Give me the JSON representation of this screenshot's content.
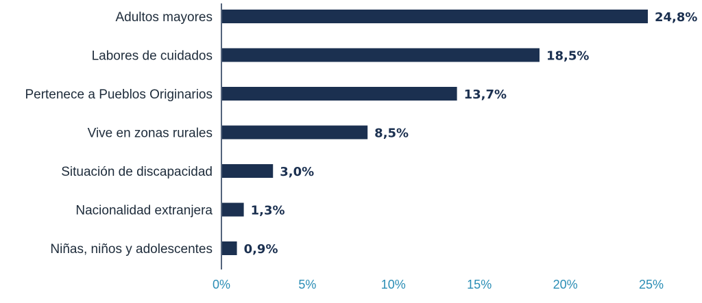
{
  "chart_data": {
    "type": "bar",
    "orientation": "horizontal",
    "categories": [
      "Adultos mayores",
      "Labores de cuidados",
      "Pertenece a Pueblos Originarios",
      "Vive en zonas rurales",
      "Situación de discapacidad",
      "Nacionalidad extranjera",
      "Niñas, niños y adolescentes"
    ],
    "values": [
      24.8,
      18.5,
      13.7,
      8.5,
      3.0,
      1.3,
      0.9
    ],
    "value_labels": [
      "24,8%",
      "18,5%",
      "13,7%",
      "8,5%",
      "3,0%",
      "1,3%",
      "0,9%"
    ],
    "xlim": [
      0,
      25
    ],
    "xticks": [
      0,
      5,
      10,
      15,
      20,
      25
    ],
    "xtick_labels": [
      "0%",
      "5%",
      "10%",
      "15%",
      "20%",
      "25%"
    ],
    "title": "",
    "xlabel": "",
    "ylabel": "",
    "grid": false,
    "colors": {
      "bar": "#1b3050",
      "tick_text": "#2a8db5",
      "axis": "#1b3050"
    }
  }
}
